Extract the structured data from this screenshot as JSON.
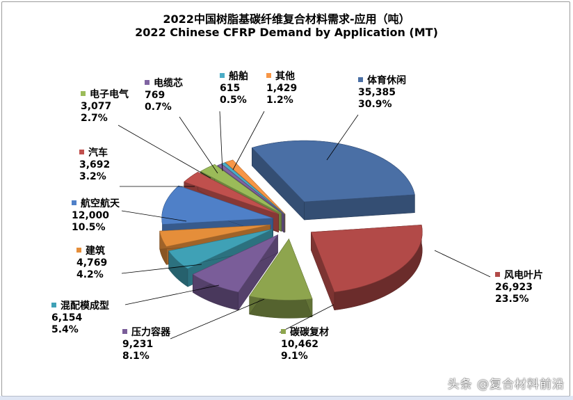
{
  "chart_data": {
    "type": "pie",
    "title": "2022中国树脂基碳纤维复合材料需求-应用（吨）",
    "subtitle": "2022 Chinese CFRP Demand by Application (MT)",
    "unit": "MT",
    "slices": [
      {
        "name": "体育休闲",
        "value": "35,385",
        "pct": "30.9%",
        "v": 35385,
        "color": "#4a6fa5"
      },
      {
        "name": "风电叶片",
        "value": "26,923",
        "pct": "23.5%",
        "v": 26923,
        "color": "#b24a48"
      },
      {
        "name": "碳碳复材",
        "value": "10,462",
        "pct": "9.1%",
        "v": 10462,
        "color": "#8ea54e"
      },
      {
        "name": "压力容器",
        "value": "9,231",
        "pct": "8.1%",
        "v": 9231,
        "color": "#7a5d99"
      },
      {
        "name": "混配模成型",
        "value": "6,154",
        "pct": "5.4%",
        "v": 6154,
        "color": "#3fa1b6"
      },
      {
        "name": "建筑",
        "value": "4,769",
        "pct": "4.2%",
        "v": 4769,
        "color": "#e58e3a"
      },
      {
        "name": "航空航天",
        "value": "12,000",
        "pct": "10.5%",
        "v": 12000,
        "color": "#4f80c8"
      },
      {
        "name": "汽车",
        "value": "3,692",
        "pct": "3.2%",
        "v": 3692,
        "color": "#c0504d"
      },
      {
        "name": "电子电气",
        "value": "3,077",
        "pct": "2.7%",
        "v": 3077,
        "color": "#9bbb59"
      },
      {
        "name": "电缆芯",
        "value": "769",
        "pct": "0.7%",
        "v": 769,
        "color": "#8064a2"
      },
      {
        "name": "船舶",
        "value": "615",
        "pct": "0.5%",
        "v": 615,
        "color": "#4bacc6"
      },
      {
        "name": "其他",
        "value": "1,429",
        "pct": "1.2%",
        "v": 1429,
        "color": "#f79646"
      }
    ]
  },
  "watermark": "头条 @复合材料前沿"
}
